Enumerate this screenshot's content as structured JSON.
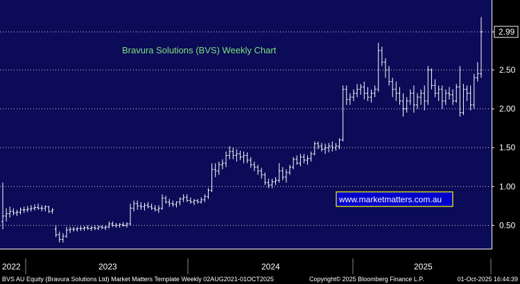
{
  "chart_data": {
    "type": "ohlc",
    "title": "Bravura Solutions (BVS) Weekly Chart",
    "watermark": "www.marketmatters.com.au",
    "last_price_label": "2.99",
    "ylim": [
      0.2,
      3.4
    ],
    "y_ticks": [
      "0.50",
      "1.00",
      "1.50",
      "2.00",
      "2.50",
      "2.99"
    ],
    "x_labels": [
      "2022",
      "2023",
      "2024",
      "2025"
    ],
    "grid": true,
    "colors": {
      "plot_bg": "#0b0b57",
      "bars": "#ffffff",
      "grid": "#ffffff",
      "title": "#7fe07f",
      "watermark_border": "#ffff00",
      "watermark_bg": "#0000cc"
    },
    "series": [
      {
        "values": [
          [
            0.55,
            1.05,
            0.45,
            0.62
          ],
          [
            0.62,
            0.72,
            0.55,
            0.65
          ],
          [
            0.65,
            0.74,
            0.6,
            0.68
          ],
          [
            0.68,
            0.72,
            0.63,
            0.66
          ],
          [
            0.66,
            0.7,
            0.62,
            0.67
          ],
          [
            0.67,
            0.73,
            0.64,
            0.7
          ],
          [
            0.7,
            0.74,
            0.66,
            0.7
          ],
          [
            0.7,
            0.75,
            0.67,
            0.71
          ],
          [
            0.71,
            0.76,
            0.68,
            0.72
          ],
          [
            0.72,
            0.77,
            0.69,
            0.73
          ],
          [
            0.73,
            0.78,
            0.7,
            0.72
          ],
          [
            0.72,
            0.76,
            0.68,
            0.72
          ],
          [
            0.72,
            0.76,
            0.68,
            0.74
          ],
          [
            0.74,
            0.75,
            0.66,
            0.68
          ],
          [
            0.68,
            0.72,
            0.65,
            0.7
          ],
          [
            0.45,
            0.5,
            0.35,
            0.38
          ],
          [
            0.38,
            0.42,
            0.28,
            0.32
          ],
          [
            0.32,
            0.4,
            0.28,
            0.36
          ],
          [
            0.36,
            0.48,
            0.34,
            0.44
          ],
          [
            0.44,
            0.48,
            0.4,
            0.45
          ],
          [
            0.45,
            0.48,
            0.42,
            0.45
          ],
          [
            0.45,
            0.48,
            0.42,
            0.46
          ],
          [
            0.46,
            0.49,
            0.43,
            0.46
          ],
          [
            0.46,
            0.49,
            0.43,
            0.47
          ],
          [
            0.47,
            0.5,
            0.44,
            0.46
          ],
          [
            0.46,
            0.49,
            0.43,
            0.47
          ],
          [
            0.47,
            0.5,
            0.44,
            0.46
          ],
          [
            0.46,
            0.5,
            0.44,
            0.48
          ],
          [
            0.48,
            0.5,
            0.45,
            0.47
          ],
          [
            0.47,
            0.5,
            0.44,
            0.48
          ],
          [
            0.48,
            0.55,
            0.46,
            0.52
          ],
          [
            0.52,
            0.55,
            0.48,
            0.5
          ],
          [
            0.5,
            0.53,
            0.47,
            0.5
          ],
          [
            0.5,
            0.53,
            0.47,
            0.51
          ],
          [
            0.51,
            0.54,
            0.48,
            0.5
          ],
          [
            0.5,
            0.54,
            0.47,
            0.52
          ],
          [
            0.52,
            0.78,
            0.5,
            0.72
          ],
          [
            0.72,
            0.82,
            0.68,
            0.78
          ],
          [
            0.78,
            0.82,
            0.7,
            0.75
          ],
          [
            0.75,
            0.8,
            0.7,
            0.74
          ],
          [
            0.74,
            0.79,
            0.69,
            0.76
          ],
          [
            0.76,
            0.8,
            0.72,
            0.74
          ],
          [
            0.74,
            0.78,
            0.7,
            0.72
          ],
          [
            0.72,
            0.76,
            0.68,
            0.7
          ],
          [
            0.7,
            0.76,
            0.66,
            0.72
          ],
          [
            0.72,
            0.9,
            0.7,
            0.85
          ],
          [
            0.85,
            0.88,
            0.78,
            0.8
          ],
          [
            0.8,
            0.84,
            0.74,
            0.78
          ],
          [
            0.78,
            0.82,
            0.74,
            0.77
          ],
          [
            0.77,
            0.81,
            0.73,
            0.8
          ],
          [
            0.8,
            0.86,
            0.76,
            0.84
          ],
          [
            0.84,
            0.9,
            0.8,
            0.86
          ],
          [
            0.86,
            0.9,
            0.8,
            0.82
          ],
          [
            0.82,
            0.86,
            0.78,
            0.8
          ],
          [
            0.8,
            0.84,
            0.76,
            0.82
          ],
          [
            0.82,
            0.84,
            0.78,
            0.8
          ],
          [
            0.8,
            0.86,
            0.78,
            0.83
          ],
          [
            0.83,
            0.9,
            0.8,
            0.87
          ],
          [
            0.87,
            0.98,
            0.84,
            0.95
          ],
          [
            0.95,
            1.3,
            0.93,
            1.22
          ],
          [
            1.22,
            1.3,
            1.12,
            1.2
          ],
          [
            1.2,
            1.32,
            1.15,
            1.28
          ],
          [
            1.28,
            1.35,
            1.22,
            1.3
          ],
          [
            1.3,
            1.45,
            1.25,
            1.4
          ],
          [
            1.4,
            1.52,
            1.35,
            1.45
          ],
          [
            1.45,
            1.5,
            1.35,
            1.4
          ],
          [
            1.4,
            1.48,
            1.32,
            1.42
          ],
          [
            1.42,
            1.46,
            1.34,
            1.38
          ],
          [
            1.38,
            1.45,
            1.3,
            1.4
          ],
          [
            1.4,
            1.44,
            1.3,
            1.34
          ],
          [
            1.34,
            1.38,
            1.24,
            1.28
          ],
          [
            1.28,
            1.32,
            1.2,
            1.25
          ],
          [
            1.25,
            1.28,
            1.15,
            1.2
          ],
          [
            1.2,
            1.24,
            1.1,
            1.15
          ],
          [
            1.15,
            1.18,
            1.02,
            1.05
          ],
          [
            1.05,
            1.1,
            0.98,
            1.02
          ],
          [
            1.02,
            1.1,
            0.98,
            1.06
          ],
          [
            1.06,
            1.12,
            1.02,
            1.08
          ],
          [
            1.08,
            1.3,
            1.05,
            1.2
          ],
          [
            1.2,
            1.25,
            1.08,
            1.12
          ],
          [
            1.12,
            1.22,
            1.05,
            1.18
          ],
          [
            1.18,
            1.28,
            1.15,
            1.25
          ],
          [
            1.25,
            1.38,
            1.22,
            1.35
          ],
          [
            1.35,
            1.4,
            1.28,
            1.3
          ],
          [
            1.3,
            1.42,
            1.26,
            1.38
          ],
          [
            1.38,
            1.42,
            1.3,
            1.34
          ],
          [
            1.34,
            1.4,
            1.28,
            1.36
          ],
          [
            1.36,
            1.45,
            1.32,
            1.42
          ],
          [
            1.42,
            1.58,
            1.4,
            1.55
          ],
          [
            1.55,
            1.58,
            1.48,
            1.52
          ],
          [
            1.52,
            1.56,
            1.45,
            1.48
          ],
          [
            1.48,
            1.55,
            1.42,
            1.5
          ],
          [
            1.5,
            1.56,
            1.44,
            1.52
          ],
          [
            1.52,
            1.58,
            1.45,
            1.5
          ],
          [
            1.5,
            1.56,
            1.46,
            1.52
          ],
          [
            1.52,
            1.62,
            1.48,
            1.6
          ],
          [
            1.6,
            2.3,
            1.58,
            2.25
          ],
          [
            2.25,
            2.3,
            2.05,
            2.12
          ],
          [
            2.12,
            2.2,
            2.05,
            2.15
          ],
          [
            2.15,
            2.25,
            2.1,
            2.2
          ],
          [
            2.2,
            2.32,
            2.15,
            2.25
          ],
          [
            2.25,
            2.32,
            2.18,
            2.28
          ],
          [
            2.28,
            2.35,
            2.12,
            2.2
          ],
          [
            2.2,
            2.28,
            2.1,
            2.15
          ],
          [
            2.15,
            2.25,
            2.08,
            2.2
          ],
          [
            2.2,
            2.3,
            2.15,
            2.25
          ],
          [
            2.25,
            2.85,
            2.22,
            2.75
          ],
          [
            2.75,
            2.8,
            2.55,
            2.6
          ],
          [
            2.6,
            2.65,
            2.4,
            2.5
          ],
          [
            2.5,
            2.55,
            2.3,
            2.35
          ],
          [
            2.35,
            2.4,
            2.15,
            2.25
          ],
          [
            2.25,
            2.35,
            2.1,
            2.2
          ],
          [
            2.2,
            2.28,
            2.05,
            2.1
          ],
          [
            2.1,
            2.2,
            1.9,
            2.0
          ],
          [
            2.0,
            2.15,
            1.95,
            2.1
          ],
          [
            2.1,
            2.25,
            2.05,
            2.2
          ],
          [
            2.2,
            2.3,
            1.95,
            2.05
          ],
          [
            2.05,
            2.2,
            2.0,
            2.15
          ],
          [
            2.15,
            2.25,
            2.05,
            2.2
          ],
          [
            2.2,
            2.3,
            1.98,
            2.1
          ],
          [
            2.1,
            2.55,
            2.05,
            2.5
          ],
          [
            2.5,
            2.52,
            2.25,
            2.3
          ],
          [
            2.3,
            2.38,
            2.15,
            2.2
          ],
          [
            2.2,
            2.3,
            2.1,
            2.25
          ],
          [
            2.25,
            2.3,
            2.0,
            2.1
          ],
          [
            2.1,
            2.25,
            2.05,
            2.2
          ],
          [
            2.2,
            2.28,
            2.12,
            2.18
          ],
          [
            2.18,
            2.25,
            2.05,
            2.1
          ],
          [
            2.1,
            2.32,
            2.08,
            2.28
          ],
          [
            2.28,
            2.55,
            1.9,
            1.95
          ],
          [
            1.95,
            2.32,
            1.92,
            2.25
          ],
          [
            2.25,
            2.3,
            2.1,
            2.2
          ],
          [
            2.2,
            2.3,
            1.98,
            2.05
          ],
          [
            2.05,
            2.45,
            2.0,
            2.4
          ],
          [
            2.4,
            2.6,
            2.35,
            2.45
          ],
          [
            2.45,
            3.18,
            2.4,
            2.99
          ]
        ]
      }
    ]
  },
  "footer": {
    "left": "BVS AU Equity (Bravura Solutions Ltd) Market Matters Template Weekly 02AUG2021-01OCT2025",
    "center": "Copyright© 2025 Bloomberg Finance L.P.",
    "right": "01-Oct-2025 16:44:39"
  }
}
